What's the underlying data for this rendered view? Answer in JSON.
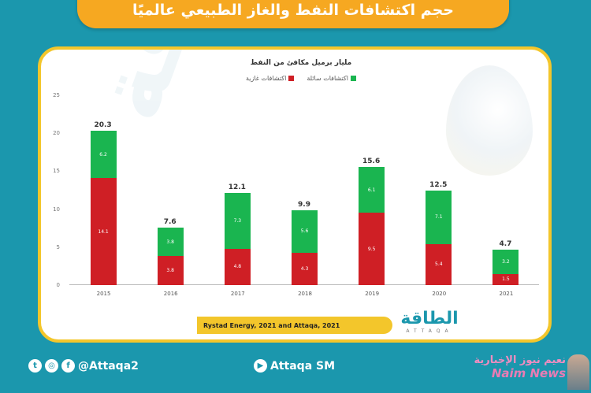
{
  "title": "حجم اكتشافات النفط والغاز الطبيعي عالميًا",
  "chart_data": {
    "type": "bar",
    "stacked": true,
    "title": "حجم اكتشافات النفط والغاز الطبيعي عالميًا",
    "subtitle": "مليار برميل مكافئ من النفط",
    "xlabel": "",
    "ylabel": "مليار برميل مكافئ من النفط",
    "categories": [
      "2015",
      "2016",
      "2017",
      "2018",
      "2019",
      "2020",
      "2021"
    ],
    "series": [
      {
        "name": "اكتشافات غازية",
        "color": "#cf1f25",
        "values": [
          14.1,
          3.8,
          4.8,
          4.3,
          9.5,
          5.4,
          1.5
        ]
      },
      {
        "name": "اكتشافات سائلة",
        "color": "#1ab550",
        "values": [
          6.2,
          3.8,
          7.3,
          5.6,
          6.1,
          7.1,
          3.2
        ]
      }
    ],
    "totals": [
      20.3,
      7.6,
      12.1,
      9.9,
      15.6,
      12.5,
      4.7
    ],
    "ylim": [
      0,
      25
    ],
    "yticks": [
      0,
      5,
      10,
      15,
      20,
      25
    ],
    "grid": false,
    "legend_position": "top"
  },
  "legend": {
    "liquid": "اكتشافات سائلة",
    "gas": "اكتشافات غازية"
  },
  "source": "Rystad Energy, 2021 and Attaqa, 2021",
  "brand": {
    "arabic": "الطاقة",
    "latin": "ATTAQA"
  },
  "watermark": "الطاقة",
  "footer": {
    "social_handle": "@Attaqa2",
    "social_icons": [
      "twitter-icon",
      "instagram-icon",
      "facebook-icon"
    ],
    "youtube_label": "Attaqa SM",
    "partner_arabic": "نعيم نيوز الإخبارية",
    "partner_latin": "Naim News"
  },
  "colors": {
    "background": "#1b97ad",
    "banner": "#f6a821",
    "frame": "#f3c62b",
    "liquid": "#1ab550",
    "gas": "#cf1f25"
  }
}
